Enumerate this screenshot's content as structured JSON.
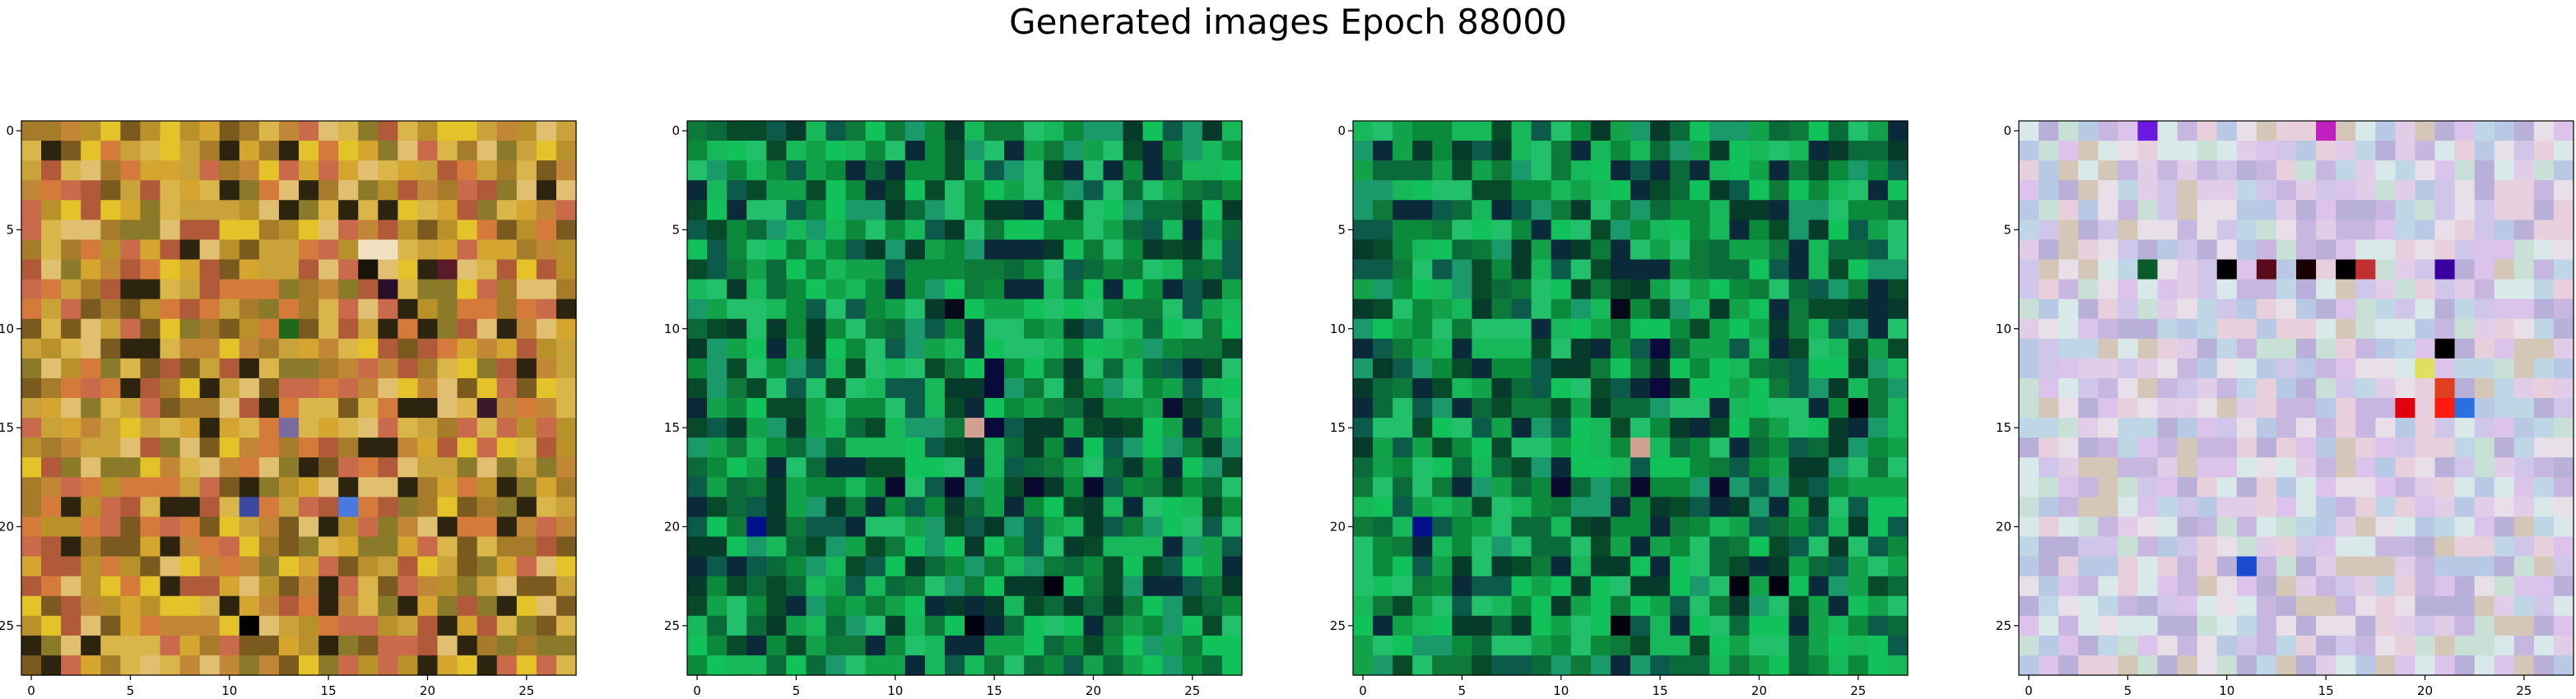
{
  "figure": {
    "title": "Generated images Epoch 88000"
  },
  "colors": {
    "panel_1_palette": [
      "#c9a23a",
      "#b8912b",
      "#d4a52f",
      "#a67c2a",
      "#c28637",
      "#d9b54a",
      "#8a7a2a",
      "#c96a4a",
      "#e0c070",
      "#b05a3a",
      "#e3c22a",
      "#7a5a1f",
      "#2d2410",
      "#d47a3a"
    ],
    "panel_2_palette": [
      "#0a8a3a",
      "#12a34a",
      "#0e7a3a",
      "#17b85a",
      "#0b6a3a",
      "#1a9a6a",
      "#074a2a",
      "#22c06a",
      "#0c5a4a",
      "#063a2a",
      "#11c25a",
      "#0a2a3a"
    ],
    "panel_3_palette": [
      "#0a8a3a",
      "#12a34a",
      "#0e7a3a",
      "#17b85a",
      "#0b6a3a",
      "#1a9a6a",
      "#074a2a",
      "#22c06a",
      "#0c5a4a",
      "#063a2a",
      "#11c25a",
      "#0a2a3a"
    ],
    "panel_4_palette": [
      "#cfc6ea",
      "#e2cde8",
      "#bfd6e6",
      "#d9e9ea",
      "#c7b6e0",
      "#e7d0dc",
      "#b7c9e4",
      "#d4c7b8",
      "#c9e0d6",
      "#dcc3ec",
      "#b8b0d8",
      "#e8dfe8"
    ]
  },
  "chart_data": [
    {
      "type": "heatmap",
      "title": "",
      "grid_shape": [
        28,
        28
      ],
      "xlim": [
        -0.5,
        27.5
      ],
      "ylim": [
        27.5,
        -0.5
      ],
      "xticks": [
        0,
        5,
        10,
        15,
        20,
        25
      ],
      "yticks": [
        0,
        5,
        10,
        15,
        20,
        25
      ],
      "xtick_labels": [
        "0",
        "5",
        "10",
        "15",
        "20",
        "25"
      ],
      "ytick_labels": [
        "0",
        "5",
        "10",
        "15",
        "20",
        "25"
      ],
      "seed": 11,
      "highlights": [
        [
          7,
          17,
          "#1a1408"
        ],
        [
          8,
          18,
          "#2a0f2a"
        ],
        [
          7,
          21,
          "#5a1a2a"
        ],
        [
          19,
          11,
          "#3a4aa0"
        ],
        [
          19,
          16,
          "#4a7ae0"
        ],
        [
          25,
          11,
          "#000000"
        ],
        [
          10,
          13,
          "#1f6a1a"
        ],
        [
          15,
          13,
          "#7a6aa0"
        ],
        [
          14,
          23,
          "#3a1a2a"
        ],
        [
          6,
          17,
          "#f0e0c0"
        ],
        [
          6,
          18,
          "#f0e0c0"
        ]
      ]
    },
    {
      "type": "heatmap",
      "title": "",
      "grid_shape": [
        28,
        28
      ],
      "xlim": [
        -0.5,
        27.5
      ],
      "ylim": [
        27.5,
        -0.5
      ],
      "xticks": [
        0,
        5,
        10,
        15,
        20,
        25
      ],
      "yticks": [
        0,
        5,
        10,
        15,
        20,
        25
      ],
      "xtick_labels": [
        "0",
        "5",
        "10",
        "15",
        "20",
        "25"
      ],
      "ytick_labels": [
        "0",
        "5",
        "10",
        "15",
        "20",
        "25"
      ],
      "seed": 23,
      "highlights": [
        [
          9,
          13,
          "#050a1a"
        ],
        [
          12,
          15,
          "#0a0a3a"
        ],
        [
          13,
          15,
          "#0a0a3a"
        ],
        [
          14,
          24,
          "#0a1030"
        ],
        [
          18,
          10,
          "#0a0a30"
        ],
        [
          18,
          13,
          "#0a0a30"
        ],
        [
          18,
          17,
          "#0a0a30"
        ],
        [
          18,
          20,
          "#0a0a30"
        ],
        [
          20,
          3,
          "#00108a"
        ],
        [
          23,
          18,
          "#000010"
        ],
        [
          25,
          14,
          "#000010"
        ],
        [
          15,
          14,
          "#d0a090"
        ],
        [
          15,
          15,
          "#0a0a3a"
        ]
      ]
    },
    {
      "type": "heatmap",
      "title": "",
      "grid_shape": [
        28,
        28
      ],
      "xlim": [
        -0.5,
        27.5
      ],
      "ylim": [
        27.5,
        -0.5
      ],
      "xticks": [
        0,
        5,
        10,
        15,
        20,
        25
      ],
      "yticks": [
        0,
        5,
        10,
        15,
        20,
        25
      ],
      "xtick_labels": [
        "0",
        "5",
        "10",
        "15",
        "20",
        "25"
      ],
      "ytick_labels": [
        "0",
        "5",
        "10",
        "15",
        "20",
        "25"
      ],
      "seed": 37,
      "highlights": [
        [
          9,
          13,
          "#050a1a"
        ],
        [
          11,
          15,
          "#0a0a3a"
        ],
        [
          13,
          15,
          "#0a0a3a"
        ],
        [
          14,
          25,
          "#000010"
        ],
        [
          18,
          10,
          "#0a0a30"
        ],
        [
          18,
          14,
          "#0a0a30"
        ],
        [
          18,
          18,
          "#0a0a30"
        ],
        [
          20,
          3,
          "#00108a"
        ],
        [
          23,
          19,
          "#000010"
        ],
        [
          23,
          21,
          "#000010"
        ],
        [
          25,
          13,
          "#000010"
        ],
        [
          16,
          14,
          "#d0a090"
        ]
      ]
    },
    {
      "type": "heatmap",
      "title": "",
      "grid_shape": [
        28,
        28
      ],
      "xlim": [
        -0.5,
        27.5
      ],
      "ylim": [
        27.5,
        -0.5
      ],
      "xticks": [
        0,
        5,
        10,
        15,
        20,
        25
      ],
      "yticks": [
        0,
        5,
        10,
        15,
        20,
        25
      ],
      "xtick_labels": [
        "0",
        "5",
        "10",
        "15",
        "20",
        "25"
      ],
      "ytick_labels": [
        "0",
        "5",
        "10",
        "15",
        "20",
        "25"
      ],
      "seed": 51,
      "highlights": [
        [
          0,
          6,
          "#6a1ae0"
        ],
        [
          0,
          15,
          "#c020c0"
        ],
        [
          7,
          10,
          "#000000"
        ],
        [
          7,
          12,
          "#5a0a1a"
        ],
        [
          7,
          14,
          "#1a0000"
        ],
        [
          7,
          16,
          "#000000"
        ],
        [
          7,
          21,
          "#3a00a0"
        ],
        [
          7,
          6,
          "#0a5a2a"
        ],
        [
          7,
          17,
          "#c03030"
        ],
        [
          14,
          19,
          "#e00010"
        ],
        [
          14,
          21,
          "#ff1a10"
        ],
        [
          13,
          21,
          "#e04020"
        ],
        [
          12,
          20,
          "#e0e060"
        ],
        [
          11,
          21,
          "#000000"
        ],
        [
          22,
          11,
          "#1a4ad0"
        ],
        [
          14,
          22,
          "#2a70e0"
        ]
      ]
    }
  ]
}
